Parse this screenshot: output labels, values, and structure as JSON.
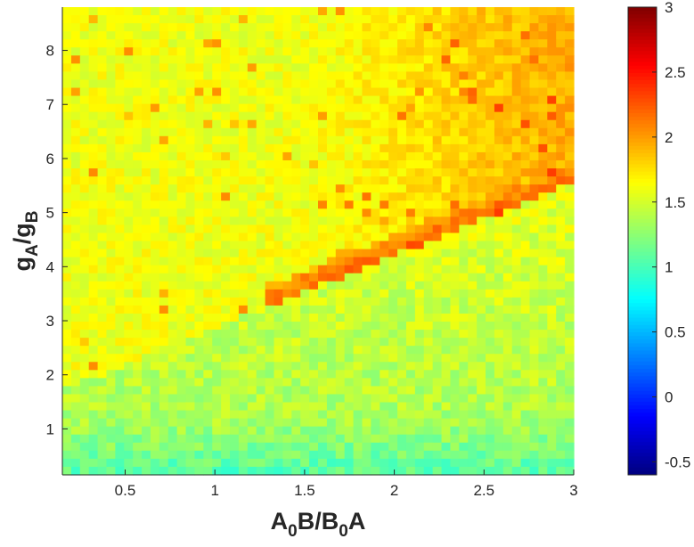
{
  "chart_data": {
    "type": "heatmap",
    "xlabel": {
      "parts": [
        {
          "text": "A",
          "sub": false
        },
        {
          "text": "0",
          "sub": true
        },
        {
          "text": "B/B",
          "sub": false
        },
        {
          "text": "0",
          "sub": true
        },
        {
          "text": "A",
          "sub": false
        }
      ]
    },
    "ylabel": {
      "parts": [
        {
          "text": "g",
          "sub": false
        },
        {
          "text": "A",
          "sub": true
        },
        {
          "text": "/g",
          "sub": false
        },
        {
          "text": "B",
          "sub": true
        }
      ]
    },
    "x_ticks": [
      {
        "value": 0.5,
        "label": "0.5"
      },
      {
        "value": 1,
        "label": "1"
      },
      {
        "value": 1.5,
        "label": "1.5"
      },
      {
        "value": 2,
        "label": "2"
      },
      {
        "value": 2.5,
        "label": "2.5"
      },
      {
        "value": 3,
        "label": "3"
      }
    ],
    "y_ticks": [
      {
        "value": 1,
        "label": "1"
      },
      {
        "value": 2,
        "label": "2"
      },
      {
        "value": 3,
        "label": "3"
      },
      {
        "value": 4,
        "label": "4"
      },
      {
        "value": 5,
        "label": "5"
      },
      {
        "value": 6,
        "label": "6"
      },
      {
        "value": 7,
        "label": "7"
      },
      {
        "value": 8,
        "label": "8"
      }
    ],
    "xlim": [
      0.15,
      3.0
    ],
    "ylim": [
      0.15,
      8.8
    ],
    "grid": {
      "nx": 58,
      "ny": 58,
      "boundary": "y = 1.5 + 1.35 * x",
      "region_below": {
        "base": 1.3,
        "ramp_with_y": 0.05,
        "low_y_dip": -0.25,
        "noise": 0.15
      },
      "region_above": {
        "base": 1.6,
        "ramp_with_x": 0.35,
        "ramp_with_y": 0.0,
        "noise": 0.12
      },
      "boundary_edge_value": 2.25,
      "pattern": "Cells below the diagonal boundary are ~1.1-1.4 (cyan-green); cells above are ~1.6-1.8 (yellow), rising to ~1.9-2.1 (orange) toward the upper right; a thin band of ~2.2-2.4 (red) runs along the boundary from x~1.4 to x~3; the lowest rows are ~0.9-1.1 (cyan)."
    },
    "colorbar": {
      "colormap": "jet",
      "clim": [
        -0.6,
        3.0
      ],
      "ticks": [
        {
          "value": -0.5,
          "label": "-0.5"
        },
        {
          "value": 0,
          "label": "0"
        },
        {
          "value": 0.5,
          "label": "0.5"
        },
        {
          "value": 1,
          "label": "1"
        },
        {
          "value": 1.5,
          "label": "1.5"
        },
        {
          "value": 2,
          "label": "2"
        },
        {
          "value": 2.5,
          "label": "2.5"
        },
        {
          "value": 3,
          "label": "3"
        }
      ]
    },
    "colors": {
      "axis": "#262626",
      "background": "#ffffff"
    }
  }
}
